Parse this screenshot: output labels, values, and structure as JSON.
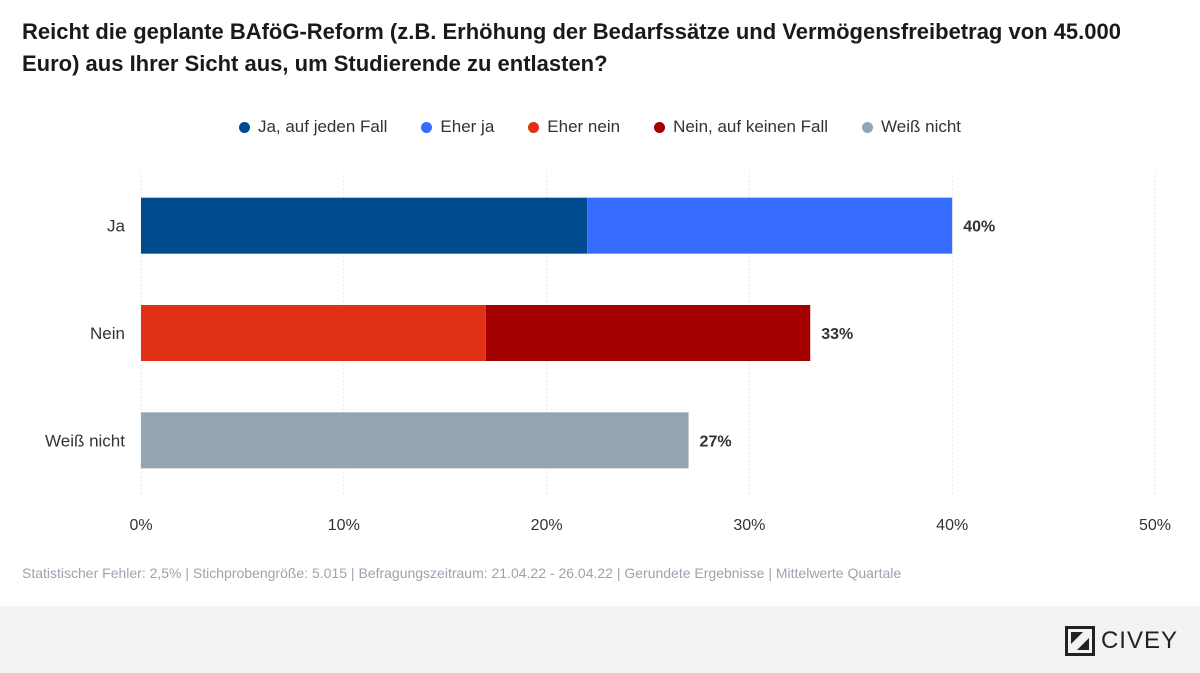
{
  "title": "Reicht die geplante BAföG-Reform (z.B. Erhöhung der Bedarfssätze und Vermögensfreibetrag von 45.000 Euro) aus Ihrer Sicht aus, um Studierende zu entlasten?",
  "legend": [
    {
      "label": "Ja, auf jeden Fall",
      "color": "#004a8f"
    },
    {
      "label": "Eher ja",
      "color": "#366cff"
    },
    {
      "label": "Eher nein",
      "color": "#e03117"
    },
    {
      "label": "Nein, auf keinen Fall",
      "color": "#a30000"
    },
    {
      "label": "Weiß nicht",
      "color": "#95a4b1"
    }
  ],
  "chart_data": {
    "type": "bar",
    "orientation": "horizontal",
    "stacked": true,
    "title": "Reicht die geplante BAföG-Reform (z.B. Erhöhung der Bedarfssätze und Vermögensfreibetrag von 45.000 Euro) aus Ihrer Sicht aus, um Studierende zu entlasten?",
    "categories": [
      "Ja",
      "Nein",
      "Weiß nicht"
    ],
    "series": [
      {
        "name": "Ja, auf jeden Fall",
        "color": "#004a8f",
        "values": [
          22,
          0,
          0
        ]
      },
      {
        "name": "Eher ja",
        "color": "#366cff",
        "values": [
          18,
          0,
          0
        ]
      },
      {
        "name": "Eher nein",
        "color": "#e03117",
        "values": [
          0,
          17,
          0
        ]
      },
      {
        "name": "Nein, auf keinen Fall",
        "color": "#a30000",
        "values": [
          0,
          16,
          0
        ]
      },
      {
        "name": "Weiß nicht",
        "color": "#95a4b1",
        "values": [
          0,
          0,
          27
        ]
      }
    ],
    "totals": [
      "40%",
      "33%",
      "27%"
    ],
    "xlim": [
      0,
      50
    ],
    "xticks": [
      "0%",
      "10%",
      "20%",
      "30%",
      "40%",
      "50%"
    ],
    "xlabel": "",
    "ylabel": "",
    "grid": true,
    "legend_position": "top"
  },
  "footnote": "Statistischer Fehler: 2,5% | Stichprobengröße: 5.015 | Befragungszeitraum: 21.04.22 - 26.04.22 | Gerundete Ergebnisse | Mittelwerte Quartale",
  "brand": {
    "name": "CIVEY",
    "logo_icon": "civey-logo-icon"
  }
}
